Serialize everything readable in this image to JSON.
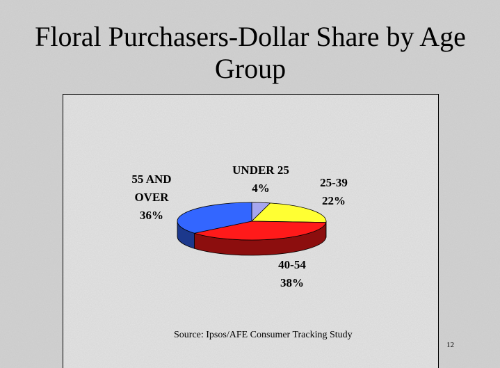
{
  "chart_data": {
    "type": "pie3d",
    "title": "Floral Purchasers-Dollar Share by Age Group",
    "categories": [
      "UNDER 25",
      "25-39",
      "40-54",
      "55 AND OVER"
    ],
    "values": [
      4,
      22,
      38,
      36
    ],
    "value_labels": [
      "4%",
      "22%",
      "38%",
      "36%"
    ],
    "colors": [
      "#a6a6ee",
      "#ffff33",
      "#ff1a1a",
      "#3366ff"
    ],
    "source": "Source: Ipsos/AFE Consumer Tracking Study",
    "page_number": "12"
  }
}
